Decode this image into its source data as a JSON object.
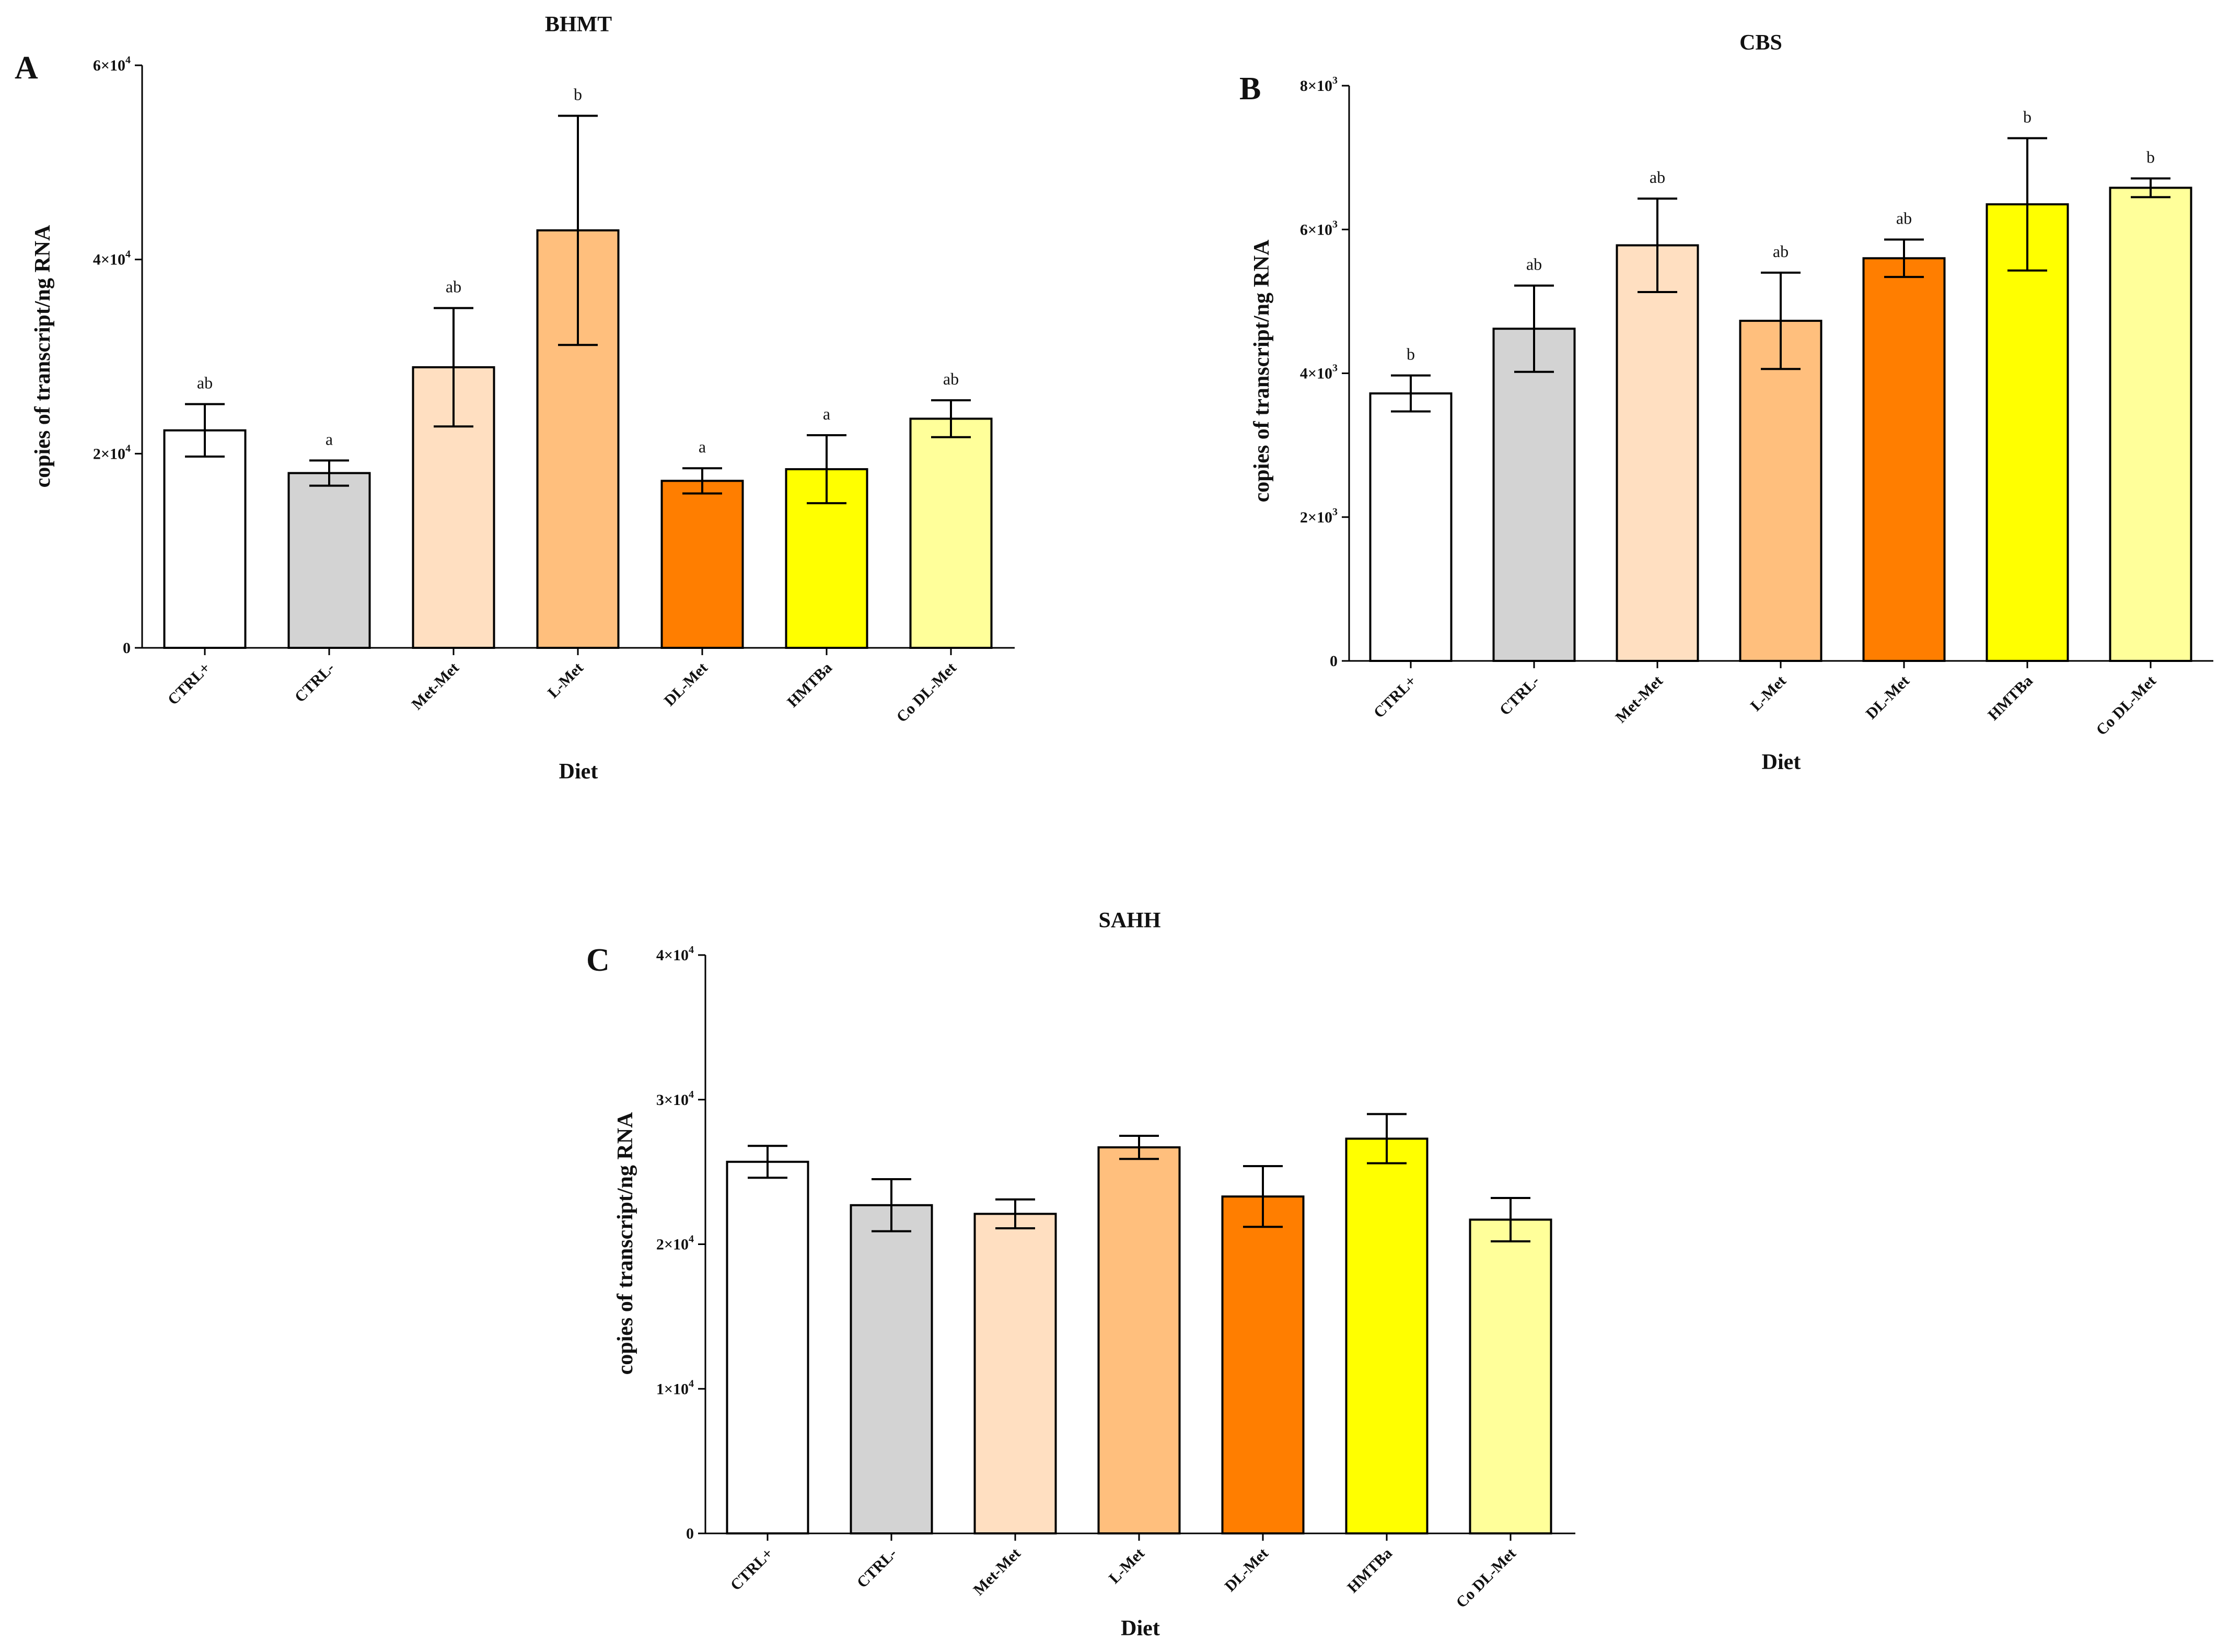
{
  "figure": {
    "colors": {
      "axis": "#000000",
      "palette": [
        "#ffffff",
        "#d3d3d3",
        "#ffdfc1",
        "#ffbf7d",
        "#ff7e00",
        "#ffff00",
        "#ffff9a"
      ]
    }
  },
  "chart_data": [
    {
      "type": "bar",
      "panel": "A",
      "title": "BHMT",
      "xlabel": "Diet",
      "ylabel": "copies of transcript/ng RNA",
      "ylim": [
        0,
        60000
      ],
      "yticks": [
        {
          "value": 0,
          "mantissa": "0",
          "exp": ""
        },
        {
          "value": 20000,
          "mantissa": "2×10",
          "exp": "4"
        },
        {
          "value": 40000,
          "mantissa": "4×10",
          "exp": "4"
        },
        {
          "value": 60000,
          "mantissa": "6×10",
          "exp": "4"
        }
      ],
      "categories": [
        "CTRL+",
        "CTRL-",
        "Met-Met",
        "L-Met",
        "DL-Met",
        "HMTBa",
        "Co DL-Met"
      ],
      "values": [
        22400,
        18000,
        28900,
        43000,
        17200,
        18400,
        23600
      ],
      "errors": [
        2700,
        1300,
        6100,
        11800,
        1300,
        3500,
        1900
      ],
      "significance": [
        "ab",
        "a",
        "ab",
        "b",
        "a",
        "a",
        "ab"
      ]
    },
    {
      "type": "bar",
      "panel": "B",
      "title": "CBS",
      "xlabel": "Diet",
      "ylabel": "copies of transcript/ng RNA",
      "ylim": [
        0,
        8000
      ],
      "yticks": [
        {
          "value": 0,
          "mantissa": "0",
          "exp": ""
        },
        {
          "value": 2000,
          "mantissa": "2×10",
          "exp": "3"
        },
        {
          "value": 4000,
          "mantissa": "4×10",
          "exp": "3"
        },
        {
          "value": 6000,
          "mantissa": "6×10",
          "exp": "3"
        },
        {
          "value": 8000,
          "mantissa": "8×10",
          "exp": "3"
        }
      ],
      "categories": [
        "CTRL+",
        "CTRL-",
        "Met-Met",
        "L-Met",
        "DL-Met",
        "HMTBa",
        "Co DL-Met"
      ],
      "values": [
        3720,
        4620,
        5780,
        4730,
        5600,
        6350,
        6580
      ],
      "errors": [
        250,
        600,
        650,
        670,
        260,
        920,
        130
      ],
      "significance": [
        "b",
        "ab",
        "ab",
        "ab",
        "ab",
        "b",
        "b"
      ]
    },
    {
      "type": "bar",
      "panel": "C",
      "title": "SAHH",
      "xlabel": "Diet",
      "ylabel": "copies of transcript/ng RNA",
      "ylim": [
        0,
        40000
      ],
      "yticks": [
        {
          "value": 0,
          "mantissa": "0",
          "exp": ""
        },
        {
          "value": 10000,
          "mantissa": "1×10",
          "exp": "4"
        },
        {
          "value": 20000,
          "mantissa": "2×10",
          "exp": "4"
        },
        {
          "value": 30000,
          "mantissa": "3×10",
          "exp": "4"
        },
        {
          "value": 40000,
          "mantissa": "4×10",
          "exp": "4"
        }
      ],
      "categories": [
        "CTRL+",
        "CTRL-",
        "Met-Met",
        "L-Met",
        "DL-Met",
        "HMTBa",
        "Co DL-Met"
      ],
      "values": [
        25700,
        22700,
        22100,
        26700,
        23300,
        27300,
        21700
      ],
      "errors": [
        1100,
        1800,
        1000,
        800,
        2100,
        1700,
        1500
      ],
      "significance": [
        "",
        "",
        "",
        "",
        "",
        "",
        ""
      ]
    }
  ]
}
